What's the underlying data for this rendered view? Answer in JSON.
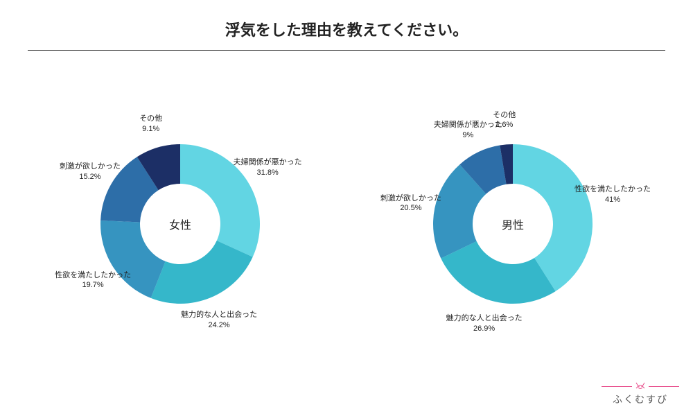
{
  "title": "浮気をした理由を教えてください。",
  "background_color": "#ffffff",
  "rule_color": "#333333",
  "charts": {
    "type": "donut-pair",
    "outer_radius": 115,
    "inner_radius": 58,
    "label_radius": 150,
    "label_fontsize": 11,
    "center_fontsize": 16,
    "left": {
      "center_label": "女性",
      "slices": [
        {
          "label": "夫婦関係が悪かった",
          "pct_text": "31.8%",
          "value": 31.8,
          "color": "#62d5e3"
        },
        {
          "label": "魅力的な人と出会った",
          "pct_text": "24.2%",
          "value": 24.2,
          "color": "#35b7ca"
        },
        {
          "label": "性欲を満たしたかった",
          "pct_text": "19.7%",
          "value": 19.7,
          "color": "#3694c0"
        },
        {
          "label": "刺激が欲しかった",
          "pct_text": "15.2%",
          "value": 15.2,
          "color": "#2d6ea8"
        },
        {
          "label": "その他",
          "pct_text": "9.1%",
          "value": 9.1,
          "color": "#1c2f66"
        }
      ]
    },
    "right": {
      "center_label": "男性",
      "slices": [
        {
          "label": "性欲を満たしたかった",
          "pct_text": "41%",
          "value": 41.0,
          "color": "#62d5e3"
        },
        {
          "label": "魅力的な人と出会った",
          "pct_text": "26.9%",
          "value": 26.9,
          "color": "#35b7ca"
        },
        {
          "label": "刺激が欲しかった",
          "pct_text": "20.5%",
          "value": 20.5,
          "color": "#3694c0"
        },
        {
          "label": "夫婦関係が悪かった",
          "pct_text": "9%",
          "value": 9.0,
          "color": "#2d6ea8"
        },
        {
          "label": "その他",
          "pct_text": "2.6%",
          "value": 2.6,
          "color": "#1c2f66"
        }
      ]
    }
  },
  "logo": {
    "text": "ふくむすび",
    "line_color": "#e84f8c",
    "icon_color": "#e84f8c",
    "text_color": "#5a5a5a"
  }
}
